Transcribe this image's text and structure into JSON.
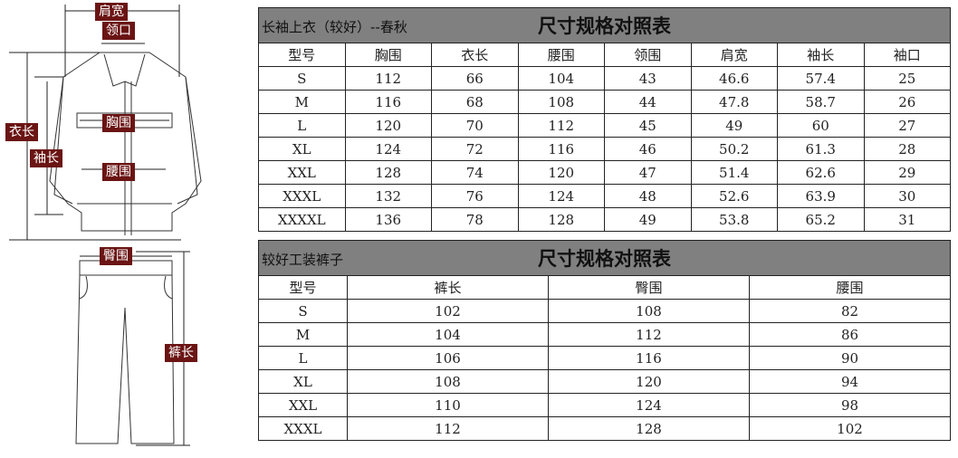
{
  "figure": {
    "labels": {
      "shoulder": "肩宽",
      "collar": "领口",
      "length": "衣长",
      "sleeve": "袖长",
      "chest": "胸围",
      "waist": "腰围",
      "hip": "臀围",
      "pants_length": "裤长"
    }
  },
  "jacket_table": {
    "subtitle": "长袖上衣（较好）--春秋",
    "title": "尺寸规格对照表",
    "headers": [
      "型号",
      "胸围",
      "衣长",
      "腰围",
      "领围",
      "肩宽",
      "袖长",
      "袖口"
    ],
    "rows": [
      [
        "S",
        "112",
        "66",
        "104",
        "43",
        "46.6",
        "57.4",
        "25"
      ],
      [
        "M",
        "116",
        "68",
        "108",
        "44",
        "47.8",
        "58.7",
        "26"
      ],
      [
        "L",
        "120",
        "70",
        "112",
        "45",
        "49",
        "60",
        "27"
      ],
      [
        "XL",
        "124",
        "72",
        "116",
        "46",
        "50.2",
        "61.3",
        "28"
      ],
      [
        "XXL",
        "128",
        "74",
        "120",
        "47",
        "51.4",
        "62.6",
        "29"
      ],
      [
        "XXXL",
        "132",
        "76",
        "124",
        "48",
        "52.6",
        "63.9",
        "30"
      ],
      [
        "XXXXL",
        "136",
        "78",
        "128",
        "49",
        "53.8",
        "65.2",
        "31"
      ]
    ]
  },
  "pants_table": {
    "subtitle": "较好工装裤子",
    "title": "尺寸规格对照表",
    "headers": [
      "型号",
      "裤长",
      "臀围",
      "腰围"
    ],
    "rows": [
      [
        "S",
        "102",
        "108",
        "82"
      ],
      [
        "M",
        "104",
        "112",
        "86"
      ],
      [
        "L",
        "106",
        "116",
        "90"
      ],
      [
        "XL",
        "108",
        "120",
        "94"
      ],
      [
        "XXL",
        "110",
        "124",
        "98"
      ],
      [
        "XXXL",
        "112",
        "128",
        "102"
      ]
    ]
  }
}
